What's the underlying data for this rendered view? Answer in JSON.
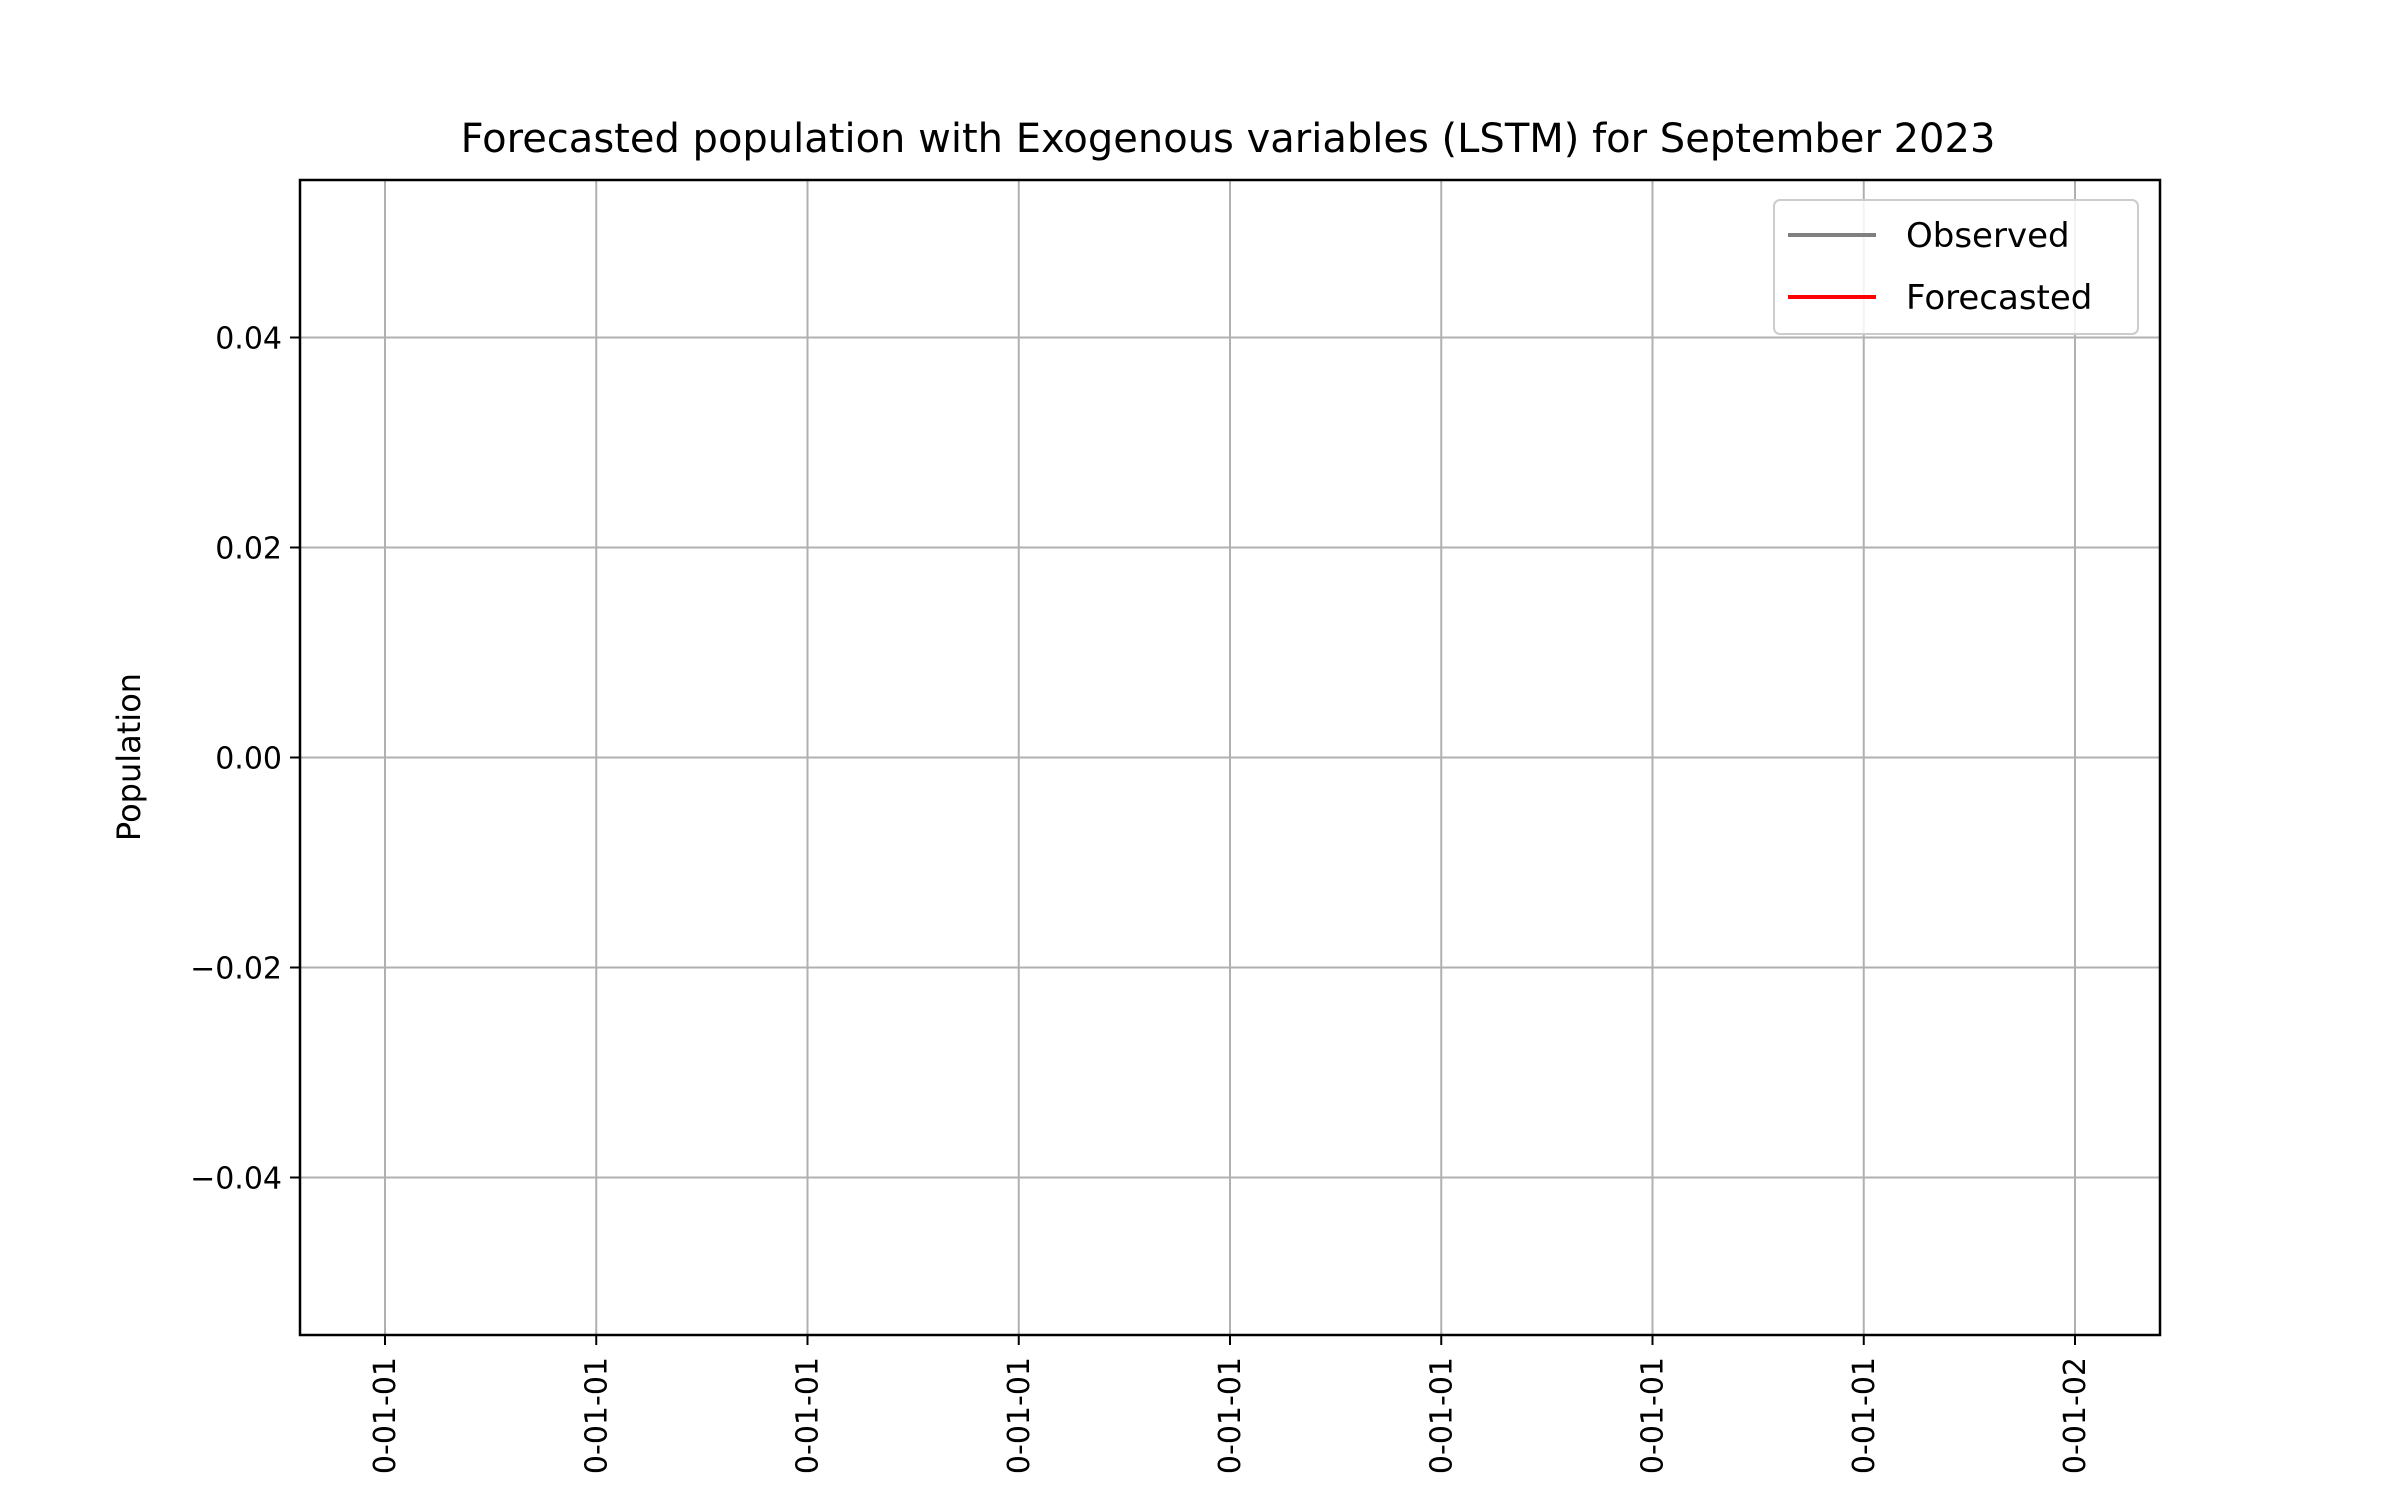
{
  "chart_data": {
    "type": "line",
    "title": "Forecasted population with Exogenous variables (LSTM) for September 2023",
    "xlabel": "",
    "ylabel": "Population",
    "ylim": [
      -0.055,
      0.055
    ],
    "y_ticks": [
      -0.04,
      -0.02,
      0.0,
      0.02,
      0.04
    ],
    "y_tick_labels": [
      "−0.04",
      "−0.02",
      "0.00",
      "0.02",
      "0.04"
    ],
    "x_tick_labels": [
      "0-01-01",
      "0-01-01",
      "0-01-01",
      "0-01-01",
      "0-01-01",
      "0-01-01",
      "0-01-01",
      "0-01-01",
      "0-01-02"
    ],
    "grid": true,
    "legend_position": "top-right",
    "series": [
      {
        "name": "Observed",
        "color": "#808080",
        "x": [],
        "values": []
      },
      {
        "name": "Forecasted",
        "color": "#ff0000",
        "x": [],
        "values": []
      }
    ]
  }
}
